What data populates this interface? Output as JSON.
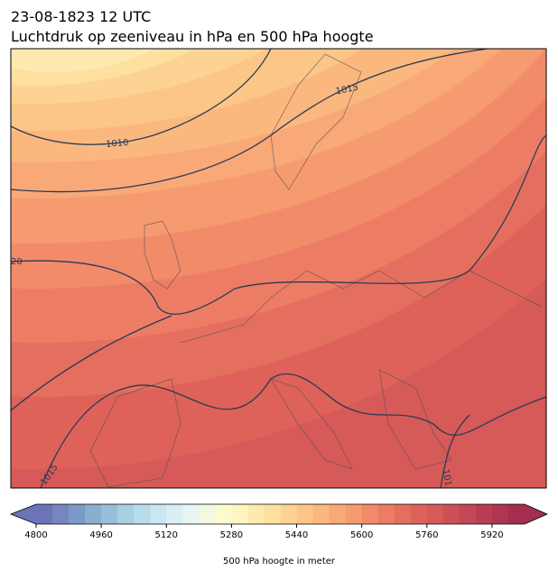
{
  "header": {
    "date": "23-08-1823 12 UTC",
    "title": "Luchtdruk op zeeniveau in hPa en 500 hPa hoogte"
  },
  "map": {
    "contour_labels": [
      "1015",
      "1010",
      "20",
      "1015",
      "101"
    ]
  },
  "colorbar": {
    "range": [
      4800,
      6000
    ],
    "ticks": [
      4800,
      4960,
      5120,
      5280,
      5440,
      5600,
      5760,
      5920
    ],
    "label": "500 hPa hoogte in meter",
    "level_colors": [
      "#6c74b8",
      "#7487bf",
      "#7c9ac6",
      "#89aed0",
      "#97bfda",
      "#a8cfe2",
      "#b8dcea",
      "#c9e7f0",
      "#d9eff4",
      "#e8f5f2",
      "#f3f9e0",
      "#fbfbcf",
      "#fff5c0",
      "#feeab0",
      "#fee0a0",
      "#fdd394",
      "#fcc687",
      "#fbb87e",
      "#f9a877",
      "#f69a70",
      "#f28b6a",
      "#ec7d64",
      "#e56f5e",
      "#de6259",
      "#d65a57",
      "#cc5156",
      "#c34755",
      "#b93e53",
      "#ae3553",
      "#a32e50"
    ]
  }
}
